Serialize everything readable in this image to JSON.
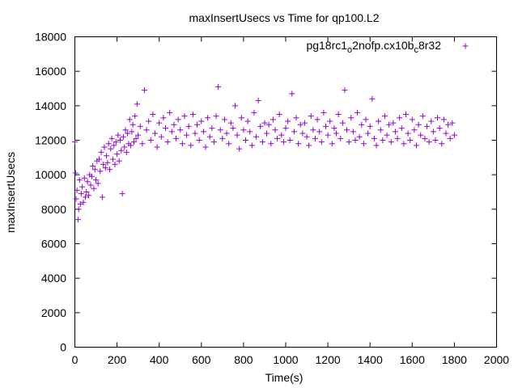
{
  "chart_data": {
    "type": "scatter",
    "title": "maxInsertUsecs vs Time for qp100.L2",
    "xlabel": "Time(s)",
    "ylabel": "maxInsertUsecs",
    "xlim": [
      0,
      2000
    ],
    "ylim": [
      0,
      18000
    ],
    "x_ticks": [
      "0",
      "200",
      "400",
      "600",
      "800",
      "1000",
      "1200",
      "1400",
      "1600",
      "1800",
      "2000"
    ],
    "y_ticks": [
      "0",
      "2000",
      "4000",
      "6000",
      "8000",
      "10000",
      "12000",
      "14000",
      "16000",
      "18000"
    ],
    "grid": false,
    "legend_position": "top-right",
    "marker": "+",
    "series": [
      {
        "name": "pg18rc1_o2nofp.cx10b_c8r32",
        "legend": {
          "base1": "pg18rc1",
          "sub1": "o",
          "mid": "2nofp.cx10b",
          "sub2": "c",
          "end": "8r32"
        },
        "color": "#9400d3",
        "points": [
          [
            0,
            11900
          ],
          [
            3,
            10100
          ],
          [
            6,
            8600
          ],
          [
            10,
            9100
          ],
          [
            15,
            7400
          ],
          [
            18,
            8000
          ],
          [
            22,
            9700
          ],
          [
            26,
            8300
          ],
          [
            30,
            8900
          ],
          [
            35,
            9300
          ],
          [
            40,
            8400
          ],
          [
            45,
            9800
          ],
          [
            50,
            8700
          ],
          [
            55,
            9000
          ],
          [
            60,
            9600
          ],
          [
            65,
            8800
          ],
          [
            70,
            10000
          ],
          [
            75,
            9400
          ],
          [
            80,
            9900
          ],
          [
            85,
            10500
          ],
          [
            90,
            9200
          ],
          [
            95,
            10300
          ],
          [
            100,
            9700
          ],
          [
            105,
            10800
          ],
          [
            110,
            9500
          ],
          [
            115,
            10900
          ],
          [
            120,
            10200
          ],
          [
            125,
            11300
          ],
          [
            130,
            8700
          ],
          [
            135,
            10600
          ],
          [
            140,
            11600
          ],
          [
            145,
            10400
          ],
          [
            150,
            11100
          ],
          [
            155,
            10700
          ],
          [
            160,
            11800
          ],
          [
            165,
            10300
          ],
          [
            170,
            11500
          ],
          [
            175,
            12100
          ],
          [
            180,
            10900
          ],
          [
            185,
            11700
          ],
          [
            190,
            10600
          ],
          [
            195,
            11900
          ],
          [
            200,
            11200
          ],
          [
            205,
            12300
          ],
          [
            210,
            10800
          ],
          [
            215,
            12000
          ],
          [
            220,
            11400
          ],
          [
            225,
            8900
          ],
          [
            230,
            12200
          ],
          [
            235,
            11600
          ],
          [
            240,
            12600
          ],
          [
            245,
            11300
          ],
          [
            250,
            12400
          ],
          [
            255,
            11800
          ],
          [
            260,
            13200
          ],
          [
            265,
            11700
          ],
          [
            270,
            12500
          ],
          [
            275,
            12900
          ],
          [
            280,
            11900
          ],
          [
            285,
            13400
          ],
          [
            290,
            12100
          ],
          [
            295,
            14100
          ],
          [
            300,
            12300
          ],
          [
            310,
            12800
          ],
          [
            320,
            11800
          ],
          [
            330,
            14900
          ],
          [
            340,
            12600
          ],
          [
            350,
            13100
          ],
          [
            360,
            12000
          ],
          [
            370,
            13500
          ],
          [
            380,
            12400
          ],
          [
            390,
            11600
          ],
          [
            400,
            13000
          ],
          [
            410,
            12200
          ],
          [
            420,
            13300
          ],
          [
            430,
            12700
          ],
          [
            440,
            11900
          ],
          [
            450,
            13600
          ],
          [
            460,
            12500
          ],
          [
            470,
            12900
          ],
          [
            480,
            12100
          ],
          [
            490,
            13200
          ],
          [
            500,
            12600
          ],
          [
            510,
            11800
          ],
          [
            520,
            13400
          ],
          [
            530,
            12300
          ],
          [
            540,
            12800
          ],
          [
            550,
            11700
          ],
          [
            560,
            13500
          ],
          [
            570,
            12400
          ],
          [
            580,
            12900
          ],
          [
            590,
            12000
          ],
          [
            600,
            13100
          ],
          [
            610,
            12500
          ],
          [
            620,
            11600
          ],
          [
            630,
            13300
          ],
          [
            640,
            12200
          ],
          [
            650,
            12700
          ],
          [
            660,
            11900
          ],
          [
            670,
            13400
          ],
          [
            680,
            15100
          ],
          [
            690,
            12600
          ],
          [
            700,
            12100
          ],
          [
            710,
            13200
          ],
          [
            720,
            12400
          ],
          [
            730,
            11800
          ],
          [
            740,
            13000
          ],
          [
            750,
            12700
          ],
          [
            760,
            14000
          ],
          [
            770,
            12300
          ],
          [
            780,
            11500
          ],
          [
            790,
            13300
          ],
          [
            800,
            12600
          ],
          [
            810,
            12000
          ],
          [
            820,
            13100
          ],
          [
            830,
            12500
          ],
          [
            840,
            11700
          ],
          [
            850,
            13600
          ],
          [
            860,
            12200
          ],
          [
            870,
            14300
          ],
          [
            880,
            12800
          ],
          [
            890,
            11900
          ],
          [
            900,
            13000
          ],
          [
            910,
            12400
          ],
          [
            920,
            12900
          ],
          [
            930,
            11800
          ],
          [
            940,
            13200
          ],
          [
            950,
            12600
          ],
          [
            960,
            12100
          ],
          [
            970,
            13500
          ],
          [
            980,
            12300
          ],
          [
            990,
            11900
          ],
          [
            1000,
            12700
          ],
          [
            1010,
            13100
          ],
          [
            1020,
            12000
          ],
          [
            1030,
            14700
          ],
          [
            1040,
            12500
          ],
          [
            1050,
            13300
          ],
          [
            1060,
            11800
          ],
          [
            1070,
            12900
          ],
          [
            1080,
            12400
          ],
          [
            1090,
            13000
          ],
          [
            1100,
            12200
          ],
          [
            1110,
            11700
          ],
          [
            1120,
            13400
          ],
          [
            1130,
            12600
          ],
          [
            1140,
            12100
          ],
          [
            1150,
            13200
          ],
          [
            1160,
            12500
          ],
          [
            1170,
            11900
          ],
          [
            1180,
            13600
          ],
          [
            1190,
            12800
          ],
          [
            1200,
            12300
          ],
          [
            1210,
            13100
          ],
          [
            1220,
            11800
          ],
          [
            1230,
            12700
          ],
          [
            1240,
            12400
          ],
          [
            1250,
            13500
          ],
          [
            1260,
            12100
          ],
          [
            1270,
            13000
          ],
          [
            1280,
            14900
          ],
          [
            1290,
            12600
          ],
          [
            1300,
            11900
          ],
          [
            1310,
            13300
          ],
          [
            1320,
            12500
          ],
          [
            1330,
            12000
          ],
          [
            1340,
            13600
          ],
          [
            1350,
            12200
          ],
          [
            1360,
            12900
          ],
          [
            1370,
            11800
          ],
          [
            1380,
            13200
          ],
          [
            1390,
            12400
          ],
          [
            1400,
            12800
          ],
          [
            1410,
            14400
          ],
          [
            1420,
            12100
          ],
          [
            1430,
            11700
          ],
          [
            1440,
            13100
          ],
          [
            1450,
            12600
          ],
          [
            1460,
            12000
          ],
          [
            1470,
            13400
          ],
          [
            1480,
            12300
          ],
          [
            1490,
            12900
          ],
          [
            1500,
            11900
          ],
          [
            1510,
            13000
          ],
          [
            1520,
            12500
          ],
          [
            1530,
            12100
          ],
          [
            1540,
            13300
          ],
          [
            1550,
            12700
          ],
          [
            1560,
            11800
          ],
          [
            1570,
            13500
          ],
          [
            1580,
            12400
          ],
          [
            1590,
            12000
          ],
          [
            1600,
            13200
          ],
          [
            1610,
            12600
          ],
          [
            1620,
            11700
          ],
          [
            1630,
            12900
          ],
          [
            1640,
            12300
          ],
          [
            1650,
            13400
          ],
          [
            1660,
            12100
          ],
          [
            1670,
            12800
          ],
          [
            1680,
            11900
          ],
          [
            1690,
            13100
          ],
          [
            1700,
            12500
          ],
          [
            1710,
            12000
          ],
          [
            1720,
            13300
          ],
          [
            1730,
            12700
          ],
          [
            1740,
            11800
          ],
          [
            1750,
            13200
          ],
          [
            1760,
            12400
          ],
          [
            1770,
            12900
          ],
          [
            1780,
            12100
          ],
          [
            1790,
            13000
          ],
          [
            1800,
            12300
          ]
        ]
      }
    ]
  }
}
